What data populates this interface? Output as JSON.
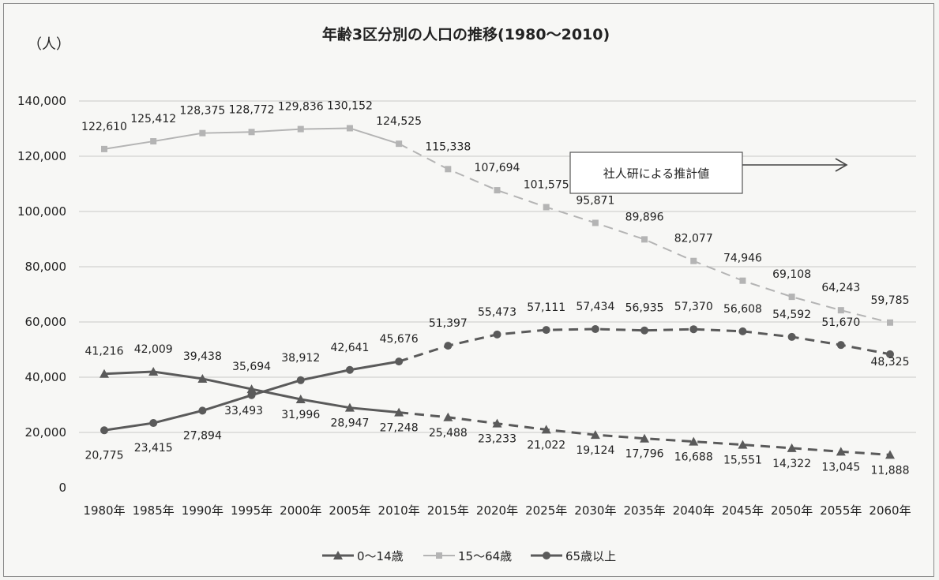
{
  "chart_data": {
    "type": "line",
    "title": "年齢3区分別の人口の推移(1980〜2010)",
    "ylabel": "（人）",
    "xlabel": "",
    "ylim": [
      0,
      140000
    ],
    "yticks": [
      "0",
      "20,000",
      "40,000",
      "60,000",
      "80,000",
      "100,000",
      "120,000",
      "140,000"
    ],
    "ytick_values": [
      0,
      20000,
      40000,
      60000,
      80000,
      100000,
      120000,
      140000
    ],
    "categories": [
      "1980年",
      "1985年",
      "1990年",
      "1995年",
      "2000年",
      "2005年",
      "2010年",
      "2015年",
      "2020年",
      "2025年",
      "2030年",
      "2035年",
      "2040年",
      "2045年",
      "2050年",
      "2055年",
      "2060年"
    ],
    "grid": "horizontal",
    "legend_position": "bottom",
    "projection_start_index": 6,
    "series": [
      {
        "name": "0〜14歳",
        "marker": "triangle",
        "color": "#5a5a5a",
        "values": [
          41216,
          42009,
          39438,
          35694,
          31996,
          28947,
          27248,
          25488,
          23233,
          21022,
          19124,
          17796,
          16688,
          15551,
          14322,
          13045,
          11888
        ],
        "labels": [
          "41,216",
          "42,009",
          "39,438",
          "35,694",
          "31,996",
          "28,947",
          "27,248",
          "25,488",
          "23,233",
          "21,022",
          "19,124",
          "17,796",
          "16,688",
          "15,551",
          "14,322",
          "13,045",
          "11,888"
        ]
      },
      {
        "name": "15〜64歳",
        "marker": "square",
        "color": "#b4b4b4",
        "values": [
          122610,
          125412,
          128375,
          128772,
          129836,
          130152,
          124525,
          115338,
          107694,
          101575,
          95871,
          89896,
          82077,
          74946,
          69108,
          64243,
          59785
        ],
        "labels": [
          "122,610",
          "125,412",
          "128,375",
          "128,772",
          "129,836",
          "130,152",
          "124,525",
          "115,338",
          "107,694",
          "101,575",
          "95,871",
          "89,896",
          "82,077",
          "74,946",
          "69,108",
          "64,243",
          "59,785"
        ]
      },
      {
        "name": "65歳以上",
        "marker": "circle",
        "color": "#5a5a5a",
        "values": [
          20775,
          23415,
          27894,
          33493,
          38912,
          42641,
          45676,
          51397,
          55473,
          57111,
          57434,
          56935,
          57370,
          56608,
          54592,
          51670,
          48325
        ],
        "labels": [
          "20,775",
          "23,415",
          "27,894",
          "33,493",
          "38,912",
          "42,641",
          "45,676",
          "51,397",
          "55,473",
          "57,111",
          "57,434",
          "56,935",
          "57,370",
          "56,608",
          "54,592",
          "51,670",
          "48,325"
        ]
      }
    ],
    "annotation": {
      "text": "社人研による推計値",
      "arrow": "right"
    }
  }
}
